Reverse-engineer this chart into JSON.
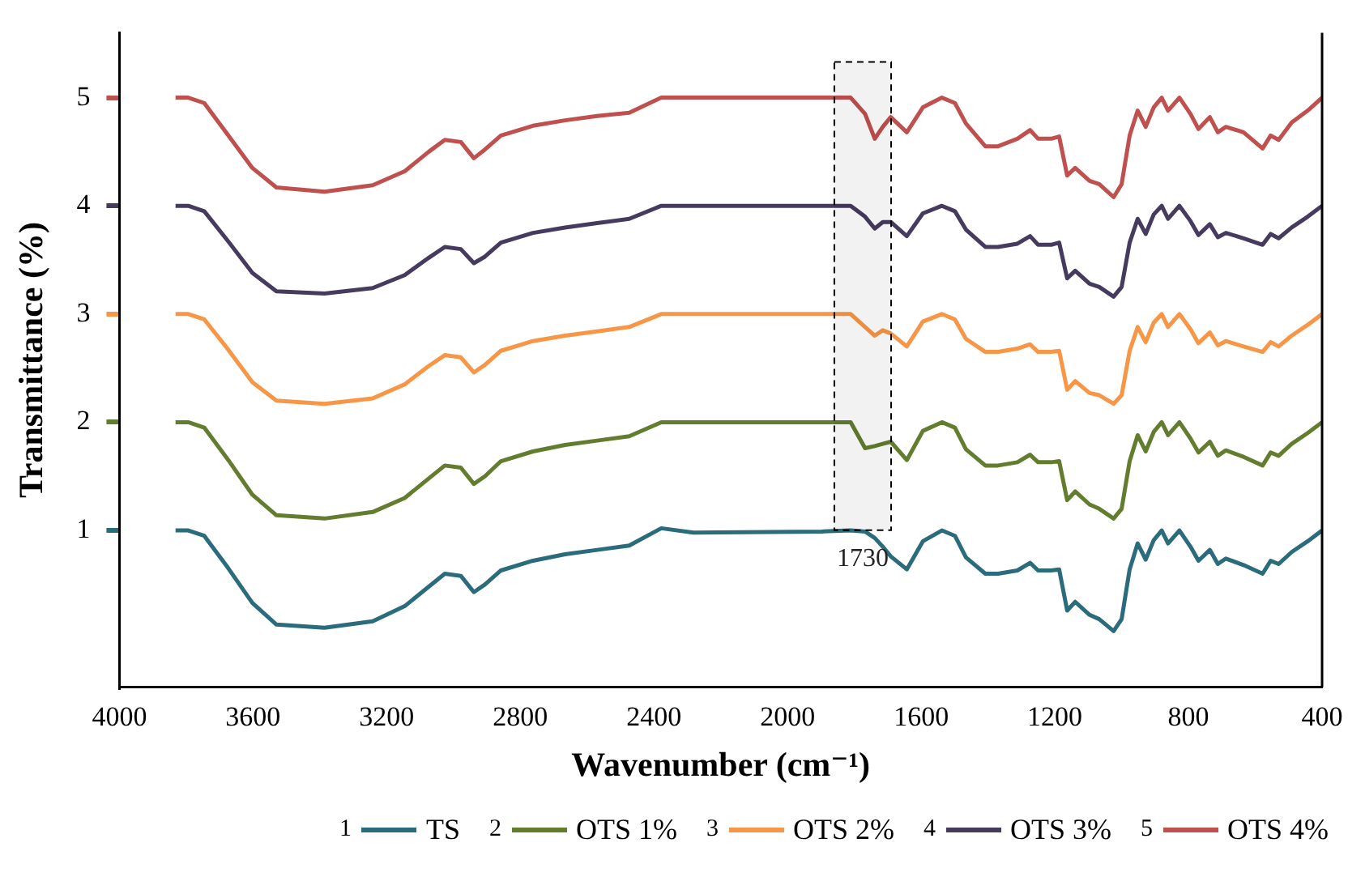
{
  "chart_data": {
    "type": "line",
    "xlabel": "Wavenumber (cm⁻¹)",
    "ylabel": "Transmittance (%)",
    "x": [
      3832,
      3794,
      3746,
      3674,
      3602,
      3530,
      3386,
      3242,
      3146,
      3074,
      3026,
      2978,
      2939,
      2906,
      2858,
      2762,
      2666,
      2570,
      2474,
      2378,
      2282,
      1898,
      1811,
      1768,
      1739,
      1715,
      1691,
      1643,
      1595,
      1538,
      1499,
      1466,
      1408,
      1370,
      1312,
      1274,
      1250,
      1211,
      1187,
      1163,
      1139,
      1096,
      1067,
      1024,
      1000,
      976,
      952,
      928,
      904,
      880,
      861,
      827,
      794,
      770,
      736,
      712,
      688,
      635,
      578,
      554,
      530,
      491,
      443,
      400
    ],
    "series": [
      {
        "name": "1 TS",
        "color": "#2a6b7c",
        "values": [
          1,
          1,
          0.95,
          0.65,
          0.33,
          0.13,
          0.1,
          0.16,
          0.3,
          0.48,
          0.6,
          0.58,
          0.43,
          0.5,
          0.63,
          0.72,
          0.78,
          0.82,
          0.86,
          1.02,
          0.98,
          0.99,
          1,
          0.99,
          0.93,
          0.85,
          0.76,
          0.64,
          0.9,
          1,
          0.95,
          0.75,
          0.6,
          0.6,
          0.63,
          0.7,
          0.63,
          0.63,
          0.64,
          0.26,
          0.34,
          0.22,
          0.18,
          0.07,
          0.18,
          0.64,
          0.88,
          0.73,
          0.91,
          1,
          0.88,
          1,
          0.85,
          0.72,
          0.82,
          0.69,
          0.74,
          0.68,
          0.6,
          0.72,
          0.69,
          0.8,
          0.9,
          1
        ]
      },
      {
        "name": "2 OTS 1%",
        "color": "#637d2f",
        "values": [
          2,
          2,
          1.95,
          1.65,
          1.33,
          1.14,
          1.11,
          1.17,
          1.3,
          1.48,
          1.6,
          1.58,
          1.43,
          1.5,
          1.64,
          1.73,
          1.79,
          1.83,
          1.87,
          2,
          2,
          2,
          2,
          1.76,
          1.78,
          1.8,
          1.82,
          1.65,
          1.92,
          2,
          1.95,
          1.75,
          1.6,
          1.6,
          1.63,
          1.7,
          1.63,
          1.63,
          1.64,
          1.28,
          1.36,
          1.24,
          1.2,
          1.11,
          1.2,
          1.64,
          1.88,
          1.73,
          1.91,
          2,
          1.88,
          2,
          1.85,
          1.72,
          1.82,
          1.69,
          1.74,
          1.68,
          1.6,
          1.72,
          1.69,
          1.8,
          1.9,
          2
        ]
      },
      {
        "name": "3 OTS 2%",
        "color": "#f79646",
        "values": [
          3,
          3,
          2.95,
          2.67,
          2.37,
          2.2,
          2.17,
          2.22,
          2.35,
          2.52,
          2.62,
          2.6,
          2.46,
          2.53,
          2.66,
          2.75,
          2.8,
          2.84,
          2.88,
          3,
          3,
          3,
          3,
          2.88,
          2.8,
          2.85,
          2.82,
          2.7,
          2.93,
          3,
          2.95,
          2.77,
          2.65,
          2.65,
          2.68,
          2.72,
          2.65,
          2.65,
          2.66,
          2.3,
          2.38,
          2.27,
          2.25,
          2.17,
          2.25,
          2.66,
          2.88,
          2.74,
          2.92,
          3,
          2.88,
          3,
          2.86,
          2.73,
          2.83,
          2.71,
          2.75,
          2.7,
          2.65,
          2.74,
          2.7,
          2.8,
          2.9,
          3
        ]
      },
      {
        "name": "4 OTS 3%",
        "color": "#463a5e",
        "values": [
          4,
          4,
          3.95,
          3.67,
          3.38,
          3.21,
          3.19,
          3.24,
          3.36,
          3.52,
          3.62,
          3.6,
          3.47,
          3.53,
          3.66,
          3.75,
          3.8,
          3.84,
          3.88,
          4,
          4,
          4,
          4,
          3.9,
          3.79,
          3.85,
          3.85,
          3.72,
          3.93,
          4,
          3.95,
          3.78,
          3.62,
          3.62,
          3.65,
          3.72,
          3.64,
          3.64,
          3.66,
          3.33,
          3.4,
          3.28,
          3.25,
          3.16,
          3.25,
          3.66,
          3.88,
          3.74,
          3.92,
          4,
          3.88,
          4,
          3.86,
          3.73,
          3.83,
          3.71,
          3.75,
          3.7,
          3.64,
          3.74,
          3.7,
          3.8,
          3.9,
          4
        ]
      },
      {
        "name": "5 OTS 4%",
        "color": "#c0504d",
        "values": [
          5,
          5,
          4.95,
          4.65,
          4.35,
          4.17,
          4.13,
          4.19,
          4.32,
          4.5,
          4.61,
          4.59,
          4.44,
          4.52,
          4.65,
          4.74,
          4.79,
          4.83,
          4.86,
          5,
          5,
          5,
          5,
          4.85,
          4.62,
          4.73,
          4.82,
          4.68,
          4.91,
          5,
          4.95,
          4.76,
          4.55,
          4.55,
          4.62,
          4.7,
          4.62,
          4.62,
          4.64,
          4.28,
          4.35,
          4.23,
          4.2,
          4.08,
          4.2,
          4.65,
          4.88,
          4.73,
          4.91,
          5,
          4.88,
          5,
          4.85,
          4.71,
          4.82,
          4.68,
          4.73,
          4.68,
          4.53,
          4.65,
          4.61,
          4.77,
          4.88,
          5
        ]
      }
    ],
    "xlim": [
      4000,
      400
    ],
    "xticks": [
      4000,
      3600,
      3200,
      2800,
      2400,
      2000,
      1600,
      1200,
      800,
      400
    ],
    "ylim": [
      -0.45,
      5.6
    ],
    "yticks": [
      1,
      2,
      3,
      4,
      5
    ],
    "bands": [
      {
        "axis": "x",
        "from": 1860,
        "to": 1690,
        "label": "1730",
        "color": "#000000"
      }
    ],
    "legend": "bottom",
    "marker": "none",
    "line_style": "solid",
    "grid": false
  }
}
